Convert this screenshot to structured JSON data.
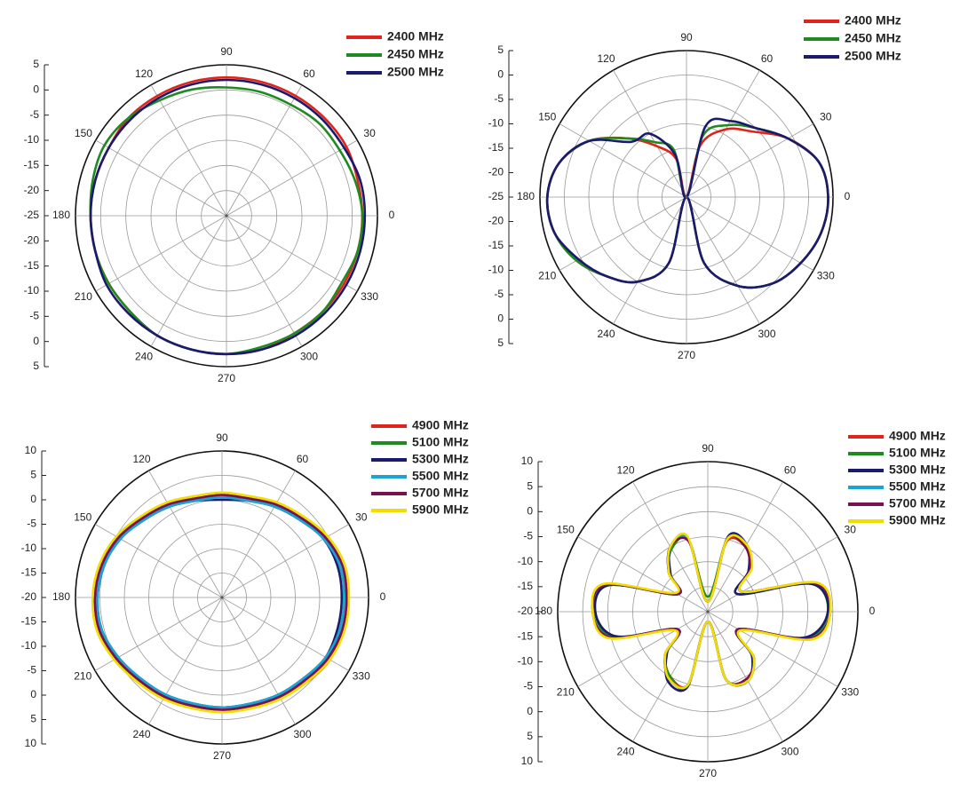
{
  "chart_data": [
    {
      "type": "polar",
      "grid": true,
      "x": [
        0,
        15,
        30,
        45,
        60,
        75,
        90,
        105,
        120,
        135,
        150,
        165,
        180,
        195,
        210,
        225,
        240,
        255,
        270,
        285,
        300,
        315,
        330,
        345
      ],
      "xticks": [
        0,
        30,
        60,
        90,
        120,
        150,
        180,
        210,
        240,
        270,
        300,
        330
      ],
      "ylim": [
        -25,
        5
      ],
      "yticks": [
        -25,
        -20,
        -15,
        -10,
        -5,
        0,
        5
      ],
      "series": [
        {
          "name": "2400 MHz",
          "color": "#e0241b",
          "values": [
            2,
            2,
            2.5,
            2.5,
            2.5,
            2.5,
            2.5,
            2.5,
            2.5,
            2.5,
            2,
            2,
            2,
            2,
            2,
            2,
            2.5,
            2.5,
            2.5,
            2.5,
            2,
            2,
            2,
            2
          ]
        },
        {
          "name": "2450 MHz",
          "color": "#1f8a1f",
          "values": [
            2,
            1.5,
            1,
            1,
            0.5,
            0.5,
            0.5,
            1,
            1.5,
            2.5,
            3,
            2.5,
            2,
            2,
            2,
            2,
            2.5,
            2.5,
            2.5,
            2,
            2,
            2,
            1.5,
            2
          ]
        },
        {
          "name": "2500 MHz",
          "color": "#1a1a6e",
          "values": [
            2.5,
            2.5,
            2,
            2,
            2,
            2,
            2,
            2,
            2,
            2,
            2,
            2,
            2,
            2,
            2.5,
            2.5,
            2.5,
            2.5,
            2.5,
            2.5,
            2.5,
            2.5,
            2.5,
            2.5
          ]
        }
      ]
    },
    {
      "type": "polar",
      "grid": true,
      "x": [
        0,
        15,
        30,
        45,
        60,
        75,
        90,
        105,
        120,
        135,
        150,
        165,
        180,
        195,
        210,
        225,
        240,
        255,
        270,
        285,
        300,
        315,
        330,
        345
      ],
      "xticks": [
        0,
        30,
        60,
        90,
        120,
        150,
        180,
        210,
        240,
        270,
        300,
        330
      ],
      "ylim": [
        -25,
        5
      ],
      "yticks": [
        -25,
        -20,
        -15,
        -10,
        -5,
        0,
        5
      ],
      "series": [
        {
          "name": "2400 MHz",
          "color": "#e0241b",
          "values": [
            4,
            3,
            -1,
            -6,
            -9,
            -14,
            -25,
            -17,
            -13,
            -8,
            -2,
            2,
            3.5,
            3,
            1,
            -2,
            -5,
            -11,
            -25,
            -11,
            -4,
            0,
            2,
            3.5
          ]
        },
        {
          "name": "2450 MHz",
          "color": "#1f8a1f",
          "values": [
            4,
            3,
            -1,
            -5,
            -8,
            -12,
            -25,
            -15,
            -12,
            -8,
            -2,
            2,
            3.5,
            3,
            1,
            -2,
            -5,
            -11,
            -25,
            -11,
            -4,
            0,
            2,
            3.5
          ]
        },
        {
          "name": "2500 MHz",
          "color": "#1a1a6e",
          "values": [
            4,
            3,
            -1,
            -5,
            -7,
            -10,
            -25,
            -16,
            -10,
            -9,
            -2,
            2,
            3.5,
            3,
            0.5,
            -2,
            -5,
            -11,
            -25,
            -11,
            -4,
            0,
            2,
            3.5
          ]
        }
      ]
    },
    {
      "type": "polar",
      "grid": true,
      "x": [
        0,
        15,
        30,
        45,
        60,
        75,
        90,
        105,
        120,
        135,
        150,
        165,
        180,
        195,
        210,
        225,
        240,
        255,
        270,
        285,
        300,
        315,
        330,
        345
      ],
      "xticks": [
        0,
        30,
        60,
        90,
        120,
        150,
        180,
        210,
        240,
        270,
        300,
        330
      ],
      "ylim": [
        -20,
        10
      ],
      "yticks": [
        -20,
        -15,
        -10,
        -5,
        0,
        5,
        10
      ],
      "series": [
        {
          "name": "4900 MHz",
          "color": "#e0241b",
          "values": [
            5.5,
            5,
            4.5,
            3,
            2,
            1,
            1,
            1,
            2,
            3,
            4.5,
            5.5,
            6,
            6,
            5,
            4,
            3.5,
            3,
            3,
            3,
            3.5,
            4.5,
            5.5,
            5.5
          ]
        },
        {
          "name": "5100 MHz",
          "color": "#1f8a1f",
          "values": [
            5,
            5,
            4.5,
            3,
            1.5,
            1,
            0.5,
            1,
            1.5,
            3,
            4.5,
            5,
            5.5,
            5.5,
            5,
            4,
            3.5,
            3,
            2.5,
            3,
            3.5,
            4.5,
            5,
            5
          ]
        },
        {
          "name": "5300 MHz",
          "color": "#1a1a6e",
          "values": [
            4.5,
            4.5,
            4,
            2.5,
            1.5,
            0.5,
            0,
            0.5,
            1.5,
            2.5,
            4,
            5,
            5.5,
            5.5,
            4.5,
            3.5,
            3,
            2.5,
            2.5,
            2.5,
            3,
            3.5,
            4.5,
            4.5
          ]
        },
        {
          "name": "5500 MHz",
          "color": "#1ba3d6",
          "values": [
            5,
            5,
            4,
            2.5,
            1.5,
            0.5,
            0.5,
            0.5,
            1.5,
            2.5,
            4,
            5,
            5.5,
            5.5,
            4.5,
            3.5,
            3,
            2.5,
            2.5,
            2.5,
            3,
            3.5,
            4.5,
            5
          ]
        },
        {
          "name": "5700 MHz",
          "color": "#7a1050",
          "values": [
            5.5,
            5.5,
            4.5,
            3,
            2,
            1,
            1,
            1,
            2,
            3,
            4.5,
            5.5,
            6,
            6,
            5,
            4,
            3.5,
            3,
            3,
            3,
            3.5,
            4,
            5,
            5.5
          ]
        },
        {
          "name": "5900 MHz",
          "color": "#f2dd00",
          "values": [
            6,
            6,
            5,
            3.5,
            2.5,
            1.5,
            1.5,
            1.5,
            2.5,
            3.5,
            5,
            6,
            6.5,
            6.5,
            5.5,
            4.5,
            4,
            3.5,
            3.5,
            3.5,
            4,
            4.5,
            5.5,
            6
          ]
        }
      ]
    },
    {
      "type": "polar",
      "grid": true,
      "x": [
        0,
        15,
        30,
        45,
        60,
        75,
        90,
        105,
        120,
        135,
        150,
        165,
        180,
        195,
        210,
        225,
        240,
        255,
        270,
        285,
        300,
        315,
        330,
        345
      ],
      "xticks": [
        0,
        30,
        60,
        90,
        120,
        150,
        180,
        210,
        240,
        270,
        300,
        330
      ],
      "ylim": [
        -20,
        10
      ],
      "yticks": [
        -20,
        -15,
        -10,
        -5,
        0,
        5,
        10
      ],
      "series": [
        {
          "name": "4900 MHz",
          "color": "#e0241b",
          "values": [
            4.5,
            2,
            -12,
            -8,
            -5,
            -5.5,
            -18,
            -5.5,
            -5,
            -9,
            -13,
            1,
            3,
            0,
            -13,
            -8,
            -5,
            -5,
            -18,
            -6,
            -4.5,
            -7,
            -13,
            1
          ]
        },
        {
          "name": "5100 MHz",
          "color": "#1f8a1f",
          "values": [
            4,
            1.5,
            -12,
            -8,
            -5,
            -5,
            -17,
            -5,
            -5.5,
            -9,
            -13,
            0.5,
            2.5,
            -0.5,
            -13,
            -8,
            -5,
            -4.5,
            -18,
            -6,
            -4,
            -7.5,
            -13,
            0.5
          ]
        },
        {
          "name": "5300 MHz",
          "color": "#1a1a6e",
          "values": [
            4,
            1.5,
            -13,
            -8.5,
            -4.5,
            -4.5,
            -18,
            -5,
            -5,
            -9.5,
            -13,
            0.5,
            2.5,
            -1,
            -13,
            -8.5,
            -4,
            -4.5,
            -18,
            -6,
            -4,
            -7.5,
            -13,
            0
          ]
        },
        {
          "name": "5500 MHz",
          "color": "#1ba3d6",
          "values": [
            4.5,
            2,
            -12,
            -8,
            -4.5,
            -5,
            -18,
            -5,
            -5,
            -9,
            -13,
            1,
            3,
            0,
            -13,
            -8,
            -4.5,
            -5,
            -18,
            -6,
            -4,
            -7,
            -13,
            1
          ]
        },
        {
          "name": "5700 MHz",
          "color": "#7a1050",
          "values": [
            4.5,
            2,
            -12,
            -8,
            -5,
            -5,
            -18,
            -5.5,
            -5,
            -9,
            -13,
            1,
            3,
            0,
            -13,
            -8,
            -4.5,
            -5,
            -18,
            -6,
            -4.5,
            -7,
            -13,
            1
          ]
        },
        {
          "name": "5900 MHz",
          "color": "#f2dd00",
          "values": [
            4.5,
            2.5,
            -12,
            -7.5,
            -4.5,
            -5,
            -18,
            -4.5,
            -5,
            -9,
            -12.5,
            1.5,
            3,
            0.5,
            -12.5,
            -8,
            -4.5,
            -5,
            -18,
            -6,
            -4,
            -7,
            -12.5,
            1.5
          ]
        }
      ]
    }
  ]
}
